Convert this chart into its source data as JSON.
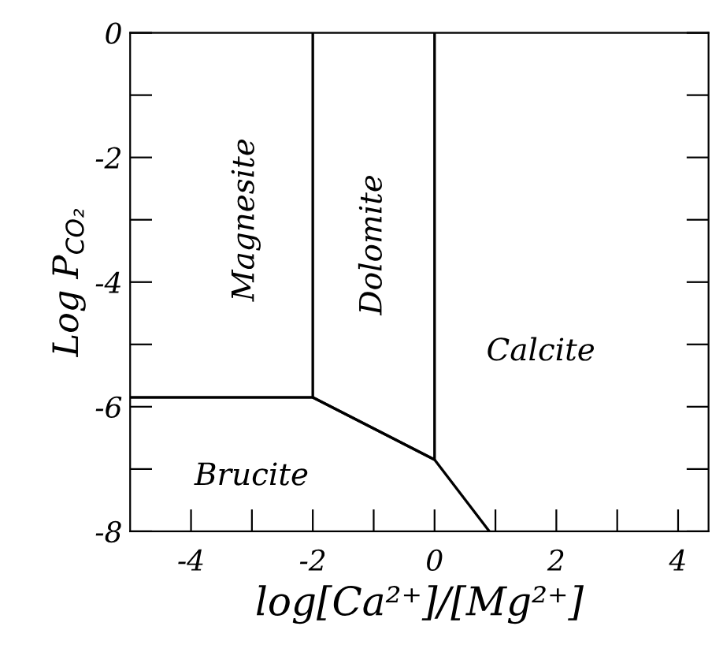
{
  "chart_data": {
    "type": "line",
    "xlabel": "log[Ca²⁺]/[Mg²⁺]",
    "ylabel": "Log P$_{CO₂}$",
    "series": [
      {
        "color": "#000000",
        "x": [
          -5,
          -2,
          0,
          0.9
        ],
        "values": [
          -5.85,
          -5.85,
          -6.85,
          -8
        ]
      },
      {
        "color": "#000000",
        "x": [
          -2,
          -2,
          0,
          0
        ],
        "values": [
          0,
          -5.85,
          -6.85,
          0
        ]
      }
    ],
    "xlim": [
      -5,
      4.5
    ],
    "ylim": [
      -8,
      0
    ],
    "xticks": [
      -4,
      {
        "value": -3,
        "label": null
      },
      -2,
      {
        "value": -1,
        "label": null
      },
      0,
      {
        "value": 1,
        "label": null
      },
      2,
      {
        "value": 3,
        "label": null
      },
      4
    ],
    "yticks": [
      -8,
      {
        "value": -7,
        "label": null
      },
      -6,
      {
        "value": -5,
        "label": null
      },
      -4,
      {
        "value": -3,
        "label": null
      },
      -2,
      {
        "value": -1,
        "label": null
      },
      0
    ],
    "annotations": [
      "Magnesite",
      "Dolomite",
      "Calcite",
      "Brucite"
    ],
    "marker": "none",
    "line_style": "solid",
    "grid": false,
    "legend": false
  }
}
